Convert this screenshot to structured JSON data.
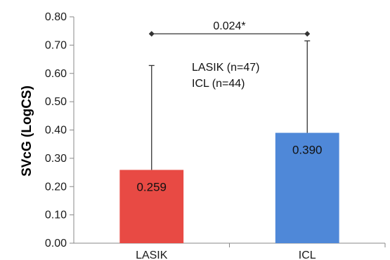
{
  "chart_data": {
    "type": "bar",
    "categories": [
      "LASIK",
      "ICL"
    ],
    "values": [
      0.259,
      0.39
    ],
    "value_labels": [
      "0.259",
      "0.390"
    ],
    "error_upper": [
      0.628,
      0.715
    ],
    "colors": [
      "#e84a44",
      "#4f88d8"
    ],
    "ylabel": "SVcG (LogCS)",
    "ylim": [
      0,
      0.8
    ],
    "yticks": [
      0.0,
      0.1,
      0.2,
      0.3,
      0.4,
      0.5,
      0.6,
      0.7,
      0.8
    ],
    "ytick_labels": [
      "0.00",
      "0.10",
      "0.20",
      "0.30",
      "0.40",
      "0.50",
      "0.60",
      "0.70",
      "0.80"
    ],
    "grid": false,
    "annotations": {
      "sample_lasik": "LASIK (n=47)",
      "sample_icl": "ICL (n=44)",
      "significance": "0.024*",
      "significance_y": 0.74
    }
  }
}
